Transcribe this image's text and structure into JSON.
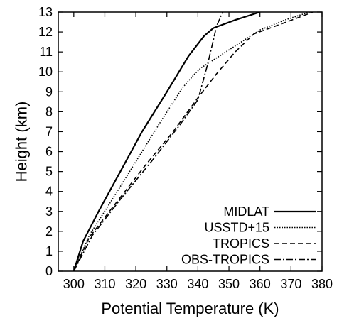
{
  "chart_data": {
    "type": "line",
    "title": "",
    "xlabel": "Potential Temperature (K)",
    "ylabel": "Height (km)",
    "xlim": [
      295,
      380
    ],
    "ylim": [
      0,
      13
    ],
    "xticks": [
      300,
      310,
      320,
      330,
      340,
      350,
      360,
      370,
      380
    ],
    "yticks": [
      0,
      1,
      2,
      3,
      4,
      5,
      6,
      7,
      8,
      9,
      10,
      11,
      12,
      13
    ],
    "grid": false,
    "legend_position": "bottom-right",
    "series": [
      {
        "name": "MIDLAT",
        "style": "solid",
        "x": [
          300,
          303,
          308,
          315,
          322,
          330,
          337,
          342,
          345,
          352,
          360
        ],
        "y": [
          0,
          1.5,
          3,
          5,
          7,
          9,
          10.8,
          11.8,
          12.2,
          12.6,
          13
        ]
      },
      {
        "name": "USSTD+15",
        "style": "dotted",
        "x": [
          300,
          305,
          312,
          320,
          328,
          335,
          339,
          341,
          345,
          350,
          355,
          360,
          368,
          376
        ],
        "y": [
          0,
          1.8,
          3.5,
          5.5,
          7.5,
          9.2,
          9.9,
          10.2,
          10.6,
          11.1,
          11.6,
          12.1,
          12.6,
          13
        ]
      },
      {
        "name": "TROPICS",
        "style": "dashed",
        "x": [
          300,
          305,
          314,
          323,
          332,
          340,
          346,
          352,
          356,
          358,
          365,
          372,
          377
        ],
        "y": [
          0,
          1.7,
          3.5,
          5.3,
          7,
          8.7,
          9.9,
          11,
          11.6,
          11.9,
          12.3,
          12.7,
          13
        ]
      },
      {
        "name": "OBS-TROPICS",
        "style": "dashdot",
        "x": [
          300,
          306,
          315,
          325,
          334,
          340,
          343,
          345,
          346,
          348
        ],
        "y": [
          0,
          1.8,
          3.6,
          5.5,
          7.3,
          8.6,
          10.3,
          11.6,
          12.3,
          13
        ]
      }
    ]
  }
}
